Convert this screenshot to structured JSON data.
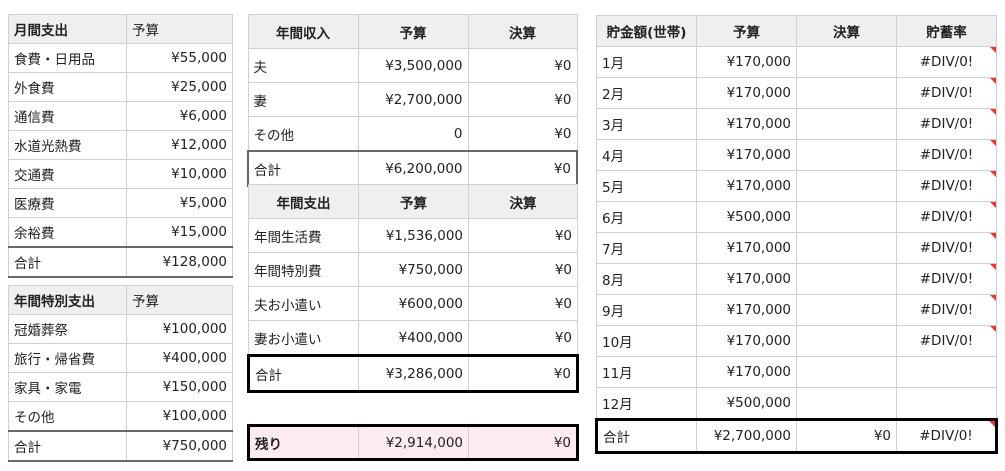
{
  "monthly_expense": {
    "headers": [
      "月間支出",
      "予算"
    ],
    "rows": [
      [
        "食費・日用品",
        "¥55,000"
      ],
      [
        "外食費",
        "¥25,000"
      ],
      [
        "通信費",
        "¥6,000"
      ],
      [
        "水道光熱費",
        "¥12,000"
      ],
      [
        "交通費",
        "¥10,000"
      ],
      [
        "医療費",
        "¥5,000"
      ],
      [
        "余裕費",
        "¥15,000"
      ]
    ],
    "total": [
      "合計",
      "¥128,000"
    ]
  },
  "annual_special_expense": {
    "headers": [
      "年間特別支出",
      "予算"
    ],
    "rows": [
      [
        "冠婚葬祭",
        "¥100,000"
      ],
      [
        "旅行・帰省費",
        "¥400,000"
      ],
      [
        "家具・家電",
        "¥150,000"
      ],
      [
        "その他",
        "¥100,000"
      ]
    ],
    "total": [
      "合計",
      "¥750,000"
    ]
  },
  "annual_income": {
    "headers": [
      "年間収入",
      "予算",
      "決算"
    ],
    "rows": [
      [
        "夫",
        "¥3,500,000",
        "¥0"
      ],
      [
        "妻",
        "¥2,700,000",
        "¥0"
      ],
      [
        "その他",
        "0",
        "¥0"
      ]
    ],
    "total": [
      "合計",
      "¥6,200,000",
      "¥0"
    ]
  },
  "annual_expense": {
    "headers": [
      "年間支出",
      "予算",
      "決算"
    ],
    "rows": [
      [
        "年間生活費",
        "¥1,536,000",
        "¥0"
      ],
      [
        "年間特別費",
        "¥750,000",
        "¥0"
      ],
      [
        "夫お小遣い",
        "¥600,000",
        "¥0"
      ],
      [
        "妻お小遣い",
        "¥400,000",
        "¥0"
      ]
    ],
    "total": [
      "合計",
      "¥3,286,000",
      "¥0"
    ]
  },
  "remainder": [
    "残り",
    "¥2,914,000",
    "¥0"
  ],
  "savings": {
    "headers": [
      "貯金額(世帯)",
      "予算",
      "決算",
      "貯蓄率"
    ],
    "rows": [
      [
        "1月",
        "¥170,000",
        "",
        "#DIV/0!"
      ],
      [
        "2月",
        "¥170,000",
        "",
        "#DIV/0!"
      ],
      [
        "3月",
        "¥170,000",
        "",
        "#DIV/0!"
      ],
      [
        "4月",
        "¥170,000",
        "",
        "#DIV/0!"
      ],
      [
        "5月",
        "¥170,000",
        "",
        "#DIV/0!"
      ],
      [
        "6月",
        "¥500,000",
        "",
        "#DIV/0!"
      ],
      [
        "7月",
        "¥170,000",
        "",
        "#DIV/0!"
      ],
      [
        "8月",
        "¥170,000",
        "",
        "#DIV/0!"
      ],
      [
        "9月",
        "¥170,000",
        "",
        "#DIV/0!"
      ],
      [
        "10月",
        "¥170,000",
        "",
        "#DIV/0!"
      ],
      [
        "11月",
        "¥170,000",
        "",
        ""
      ],
      [
        "12月",
        "¥500,000",
        "",
        ""
      ]
    ],
    "total": [
      "合計",
      "¥2,700,000",
      "¥0",
      "#DIV/0!"
    ]
  },
  "colors": {
    "error_flag": "#e53935",
    "remainder_bg": "#fcebf1",
    "header_bg": "#efefef"
  }
}
